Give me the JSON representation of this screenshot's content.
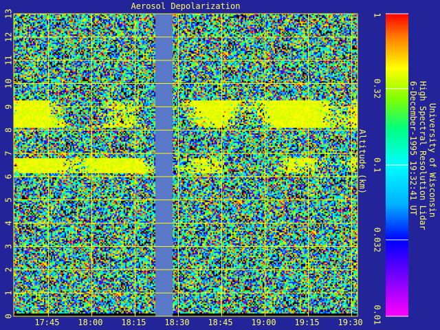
{
  "chart_data": {
    "type": "heatmap",
    "title": "Aerosol Depolarization",
    "ylabel": "Altitude (km)",
    "xlabel": "",
    "x_ticks": [
      "17:45",
      "18:00",
      "18:15",
      "18:30",
      "18:45",
      "19:00",
      "19:15",
      "19:30"
    ],
    "y_ticks": [
      "0",
      "1",
      "2",
      "3",
      "4",
      "5",
      "6",
      "7",
      "8",
      "9",
      "10",
      "11",
      "12",
      "13"
    ],
    "xlim": [
      "17:33",
      "19:32"
    ],
    "ylim": [
      0,
      13
    ],
    "grid": true,
    "data_gap": {
      "start": "18:22",
      "end": "18:28"
    },
    "colorbar": {
      "scale": "log",
      "range": [
        0.01,
        1
      ],
      "ticks": [
        "1",
        "0.32",
        "0.1",
        "0.032",
        "0.01"
      ]
    },
    "features": [
      {
        "type": "high-depolarization cloud layer",
        "altitude_km": [
          8.1,
          9.3
        ],
        "depolarization": 0.4
      },
      {
        "type": "high-depolarization cloud layer",
        "altitude_km": [
          6.2,
          6.8
        ],
        "depolarization": 0.4
      }
    ],
    "background_depolarization_range": [
      0.01,
      1
    ]
  },
  "info": {
    "institution": "University of Wisconsin",
    "instrument": "High Spectral Resolution Lidar",
    "timestamp": "6-December-1995 19:32:41 UT"
  },
  "colors": {
    "background": "#23239a",
    "text": "#ffff66",
    "grid": "#ffff00",
    "gap": "#5a78c8"
  }
}
